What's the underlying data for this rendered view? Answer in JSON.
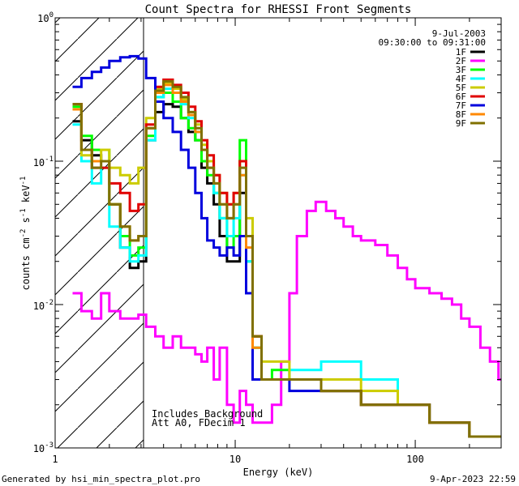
{
  "chart_data": {
    "type": "line",
    "title": "Count Spectra for RHESSI Front Segments",
    "xlabel": "Energy (keV)",
    "ylabel_parts": {
      "a": "counts cm",
      "b": "-2",
      "c": " s",
      "d": "-1",
      "e": " keV",
      "f": "-1"
    },
    "x_scale": "log",
    "y_scale": "log",
    "xlim": [
      1.0,
      300.0
    ],
    "ylim": [
      0.001,
      1.0
    ],
    "x_tick_labels": [
      {
        "value": 1,
        "label": "1"
      },
      {
        "value": 10,
        "label": "10"
      },
      {
        "value": 100,
        "label": "100"
      }
    ],
    "y_tick_labels": [
      {
        "value": 0.001,
        "base": "10",
        "exp": "-3"
      },
      {
        "value": 0.01,
        "base": "10",
        "exp": "-2"
      },
      {
        "value": 0.1,
        "base": "10",
        "exp": "-1"
      },
      {
        "value": 1,
        "base": "10",
        "exp": "0"
      }
    ],
    "shaded_region": {
      "x": [
        1.0,
        3.0
      ],
      "pattern": "diagonal hatch"
    },
    "date": "9-Jul-2003",
    "time_range": "09:30:00 to 09:31:00",
    "annotations": [
      "Includes Background",
      "Att A0, FDecim 1"
    ],
    "footer_left": "Generated by hsi_min_spectra_plot.pro",
    "footer_right": "9-Apr-2023 22:59",
    "legend_placement": "top-right",
    "series": [
      {
        "name": "1F",
        "color": "#000000",
        "x": [
          1.25,
          1.4,
          1.6,
          1.8,
          2.0,
          2.3,
          2.6,
          2.9,
          3.2,
          3.6,
          4.0,
          4.5,
          5.0,
          5.5,
          6.0,
          6.5,
          7.0,
          7.6,
          8.2,
          9.0,
          9.8,
          10.6,
          11.5,
          12.5,
          14,
          16,
          20,
          30,
          50,
          80,
          120,
          200
        ],
        "y": [
          0.19,
          0.14,
          0.11,
          0.1,
          0.05,
          0.025,
          0.018,
          0.02,
          0.14,
          0.22,
          0.25,
          0.24,
          0.2,
          0.16,
          0.14,
          0.09,
          0.07,
          0.05,
          0.03,
          0.02,
          0.02,
          0.06,
          0.03,
          0.006,
          0.003,
          0.003,
          0.003,
          0.0025,
          0.002,
          0.002,
          0.0015,
          0.0012
        ]
      },
      {
        "name": "2F",
        "color": "#ff00ff",
        "x": [
          1.25,
          1.4,
          1.6,
          1.8,
          2.0,
          2.3,
          2.6,
          2.9,
          3.2,
          3.6,
          4.0,
          4.5,
          5.0,
          5.5,
          6.0,
          6.5,
          7.0,
          7.6,
          8.2,
          9.0,
          9.8,
          10.6,
          11.5,
          12.5,
          14,
          16,
          18,
          20,
          22,
          25,
          28,
          32,
          36,
          40,
          45,
          50,
          60,
          70,
          80,
          90,
          100,
          120,
          140,
          160,
          180,
          200,
          230,
          260,
          290
        ],
        "y": [
          0.012,
          0.009,
          0.008,
          0.012,
          0.009,
          0.008,
          0.008,
          0.0085,
          0.007,
          0.006,
          0.005,
          0.006,
          0.005,
          0.005,
          0.0045,
          0.004,
          0.005,
          0.003,
          0.005,
          0.002,
          0.0015,
          0.0025,
          0.002,
          0.0015,
          0.0015,
          0.002,
          0.004,
          0.012,
          0.03,
          0.045,
          0.052,
          0.045,
          0.04,
          0.035,
          0.03,
          0.028,
          0.026,
          0.022,
          0.018,
          0.015,
          0.013,
          0.012,
          0.011,
          0.01,
          0.008,
          0.007,
          0.005,
          0.004,
          0.003
        ]
      },
      {
        "name": "3F",
        "color": "#00ff00",
        "x": [
          1.25,
          1.4,
          1.6,
          1.8,
          2.0,
          2.3,
          2.6,
          2.9,
          3.2,
          3.6,
          4.0,
          4.5,
          5.0,
          5.5,
          6.0,
          6.5,
          7.0,
          7.6,
          8.2,
          9.0,
          9.8,
          10.6,
          11.5,
          12.5,
          14,
          16,
          20,
          30,
          50,
          80,
          120,
          200
        ],
        "y": [
          0.24,
          0.15,
          0.12,
          0.12,
          0.05,
          0.03,
          0.022,
          0.025,
          0.15,
          0.28,
          0.3,
          0.26,
          0.2,
          0.17,
          0.14,
          0.1,
          0.08,
          0.06,
          0.04,
          0.025,
          0.03,
          0.14,
          0.02,
          0.005,
          0.003,
          0.0035,
          0.003,
          0.0025,
          0.002,
          0.002,
          0.0015,
          0.0012
        ]
      },
      {
        "name": "4F",
        "color": "#00ffff",
        "x": [
          1.25,
          1.4,
          1.6,
          1.8,
          2.0,
          2.3,
          2.6,
          2.9,
          3.2,
          3.6,
          4.0,
          4.5,
          5.0,
          5.5,
          6.0,
          6.5,
          7.0,
          7.6,
          8.2,
          9.0,
          9.8,
          10.6,
          11.5,
          12.5,
          14,
          16,
          20,
          30,
          50,
          80,
          120,
          200
        ],
        "y": [
          0.18,
          0.1,
          0.07,
          0.09,
          0.035,
          0.025,
          0.02,
          0.022,
          0.14,
          0.28,
          0.32,
          0.3,
          0.25,
          0.2,
          0.16,
          0.12,
          0.09,
          0.06,
          0.04,
          0.03,
          0.04,
          0.08,
          0.02,
          0.005,
          0.003,
          0.003,
          0.0035,
          0.004,
          0.003,
          0.002,
          0.0015,
          0.0012
        ]
      },
      {
        "name": "5F",
        "color": "#cccc00",
        "x": [
          1.25,
          1.4,
          1.6,
          1.8,
          2.0,
          2.3,
          2.6,
          2.9,
          3.2,
          3.6,
          4.0,
          4.5,
          5.0,
          5.5,
          6.0,
          6.5,
          7.0,
          7.6,
          8.2,
          9.0,
          9.8,
          10.6,
          11.5,
          12.5,
          14,
          16,
          20,
          30,
          50,
          80,
          120,
          200
        ],
        "y": [
          0.25,
          0.11,
          0.1,
          0.12,
          0.09,
          0.08,
          0.07,
          0.09,
          0.2,
          0.32,
          0.35,
          0.32,
          0.27,
          0.22,
          0.18,
          0.13,
          0.1,
          0.08,
          0.06,
          0.05,
          0.06,
          0.1,
          0.04,
          0.006,
          0.004,
          0.004,
          0.003,
          0.003,
          0.0025,
          0.002,
          0.0015,
          0.0012
        ]
      },
      {
        "name": "6F",
        "color": "#e00000",
        "x": [
          1.25,
          1.4,
          1.6,
          1.8,
          2.0,
          2.3,
          2.6,
          2.9,
          3.2,
          3.6,
          4.0,
          4.5,
          5.0,
          5.5,
          6.0,
          6.5,
          7.0,
          7.6,
          8.2,
          9.0,
          9.8,
          10.6,
          11.5,
          12.5,
          14,
          16,
          20,
          30,
          50,
          80,
          120,
          200
        ],
        "y": [
          0.25,
          0.12,
          0.09,
          0.09,
          0.07,
          0.06,
          0.045,
          0.05,
          0.18,
          0.33,
          0.37,
          0.34,
          0.3,
          0.24,
          0.19,
          0.14,
          0.11,
          0.08,
          0.06,
          0.05,
          0.06,
          0.1,
          0.03,
          0.006,
          0.003,
          0.003,
          0.003,
          0.0025,
          0.002,
          0.002,
          0.0015,
          0.0012
        ]
      },
      {
        "name": "7F",
        "color": "#0000dd",
        "x": [
          1.25,
          1.4,
          1.6,
          1.8,
          2.0,
          2.3,
          2.6,
          2.9,
          3.2,
          3.6,
          4.0,
          4.5,
          5.0,
          5.5,
          6.0,
          6.5,
          7.0,
          7.6,
          8.2,
          9.0,
          9.8,
          10.6,
          11.5,
          12.5,
          14,
          16,
          20,
          30,
          50,
          80,
          120,
          200
        ],
        "y": [
          0.33,
          0.38,
          0.42,
          0.45,
          0.5,
          0.53,
          0.54,
          0.52,
          0.38,
          0.26,
          0.2,
          0.16,
          0.12,
          0.09,
          0.06,
          0.04,
          0.028,
          0.025,
          0.022,
          0.025,
          0.022,
          0.03,
          0.012,
          0.003,
          0.003,
          0.003,
          0.0025,
          0.0025,
          0.002,
          0.002,
          0.0015,
          0.0012
        ]
      },
      {
        "name": "8F",
        "color": "#ff8800",
        "x": [
          1.25,
          1.4,
          1.6,
          1.8,
          2.0,
          2.3,
          2.6,
          2.9,
          3.2,
          3.6,
          4.0,
          4.5,
          5.0,
          5.5,
          6.0,
          6.5,
          7.0,
          7.6,
          8.2,
          9.0,
          9.8,
          10.6,
          11.5,
          12.5,
          14,
          16,
          20,
          30,
          50,
          80,
          120,
          200
        ],
        "y": [
          0.23,
          0.12,
          0.1,
          0.1,
          0.05,
          0.035,
          0.028,
          0.03,
          0.17,
          0.3,
          0.34,
          0.3,
          0.26,
          0.21,
          0.16,
          0.12,
          0.09,
          0.07,
          0.05,
          0.04,
          0.05,
          0.08,
          0.025,
          0.005,
          0.003,
          0.003,
          0.003,
          0.0025,
          0.002,
          0.002,
          0.0015,
          0.0012
        ]
      },
      {
        "name": "9F",
        "color": "#807000",
        "x": [
          1.25,
          1.4,
          1.6,
          1.8,
          2.0,
          2.3,
          2.6,
          2.9,
          3.2,
          3.6,
          4.0,
          4.5,
          5.0,
          5.5,
          6.0,
          6.5,
          7.0,
          7.6,
          8.2,
          9.0,
          9.8,
          10.6,
          11.5,
          12.5,
          14,
          16,
          20,
          30,
          50,
          80,
          120,
          200
        ],
        "y": [
          0.25,
          0.12,
          0.09,
          0.1,
          0.05,
          0.035,
          0.028,
          0.03,
          0.17,
          0.31,
          0.36,
          0.33,
          0.28,
          0.22,
          0.17,
          0.12,
          0.09,
          0.07,
          0.05,
          0.04,
          0.05,
          0.09,
          0.03,
          0.006,
          0.003,
          0.003,
          0.003,
          0.0025,
          0.002,
          0.002,
          0.0015,
          0.0012
        ]
      }
    ]
  }
}
